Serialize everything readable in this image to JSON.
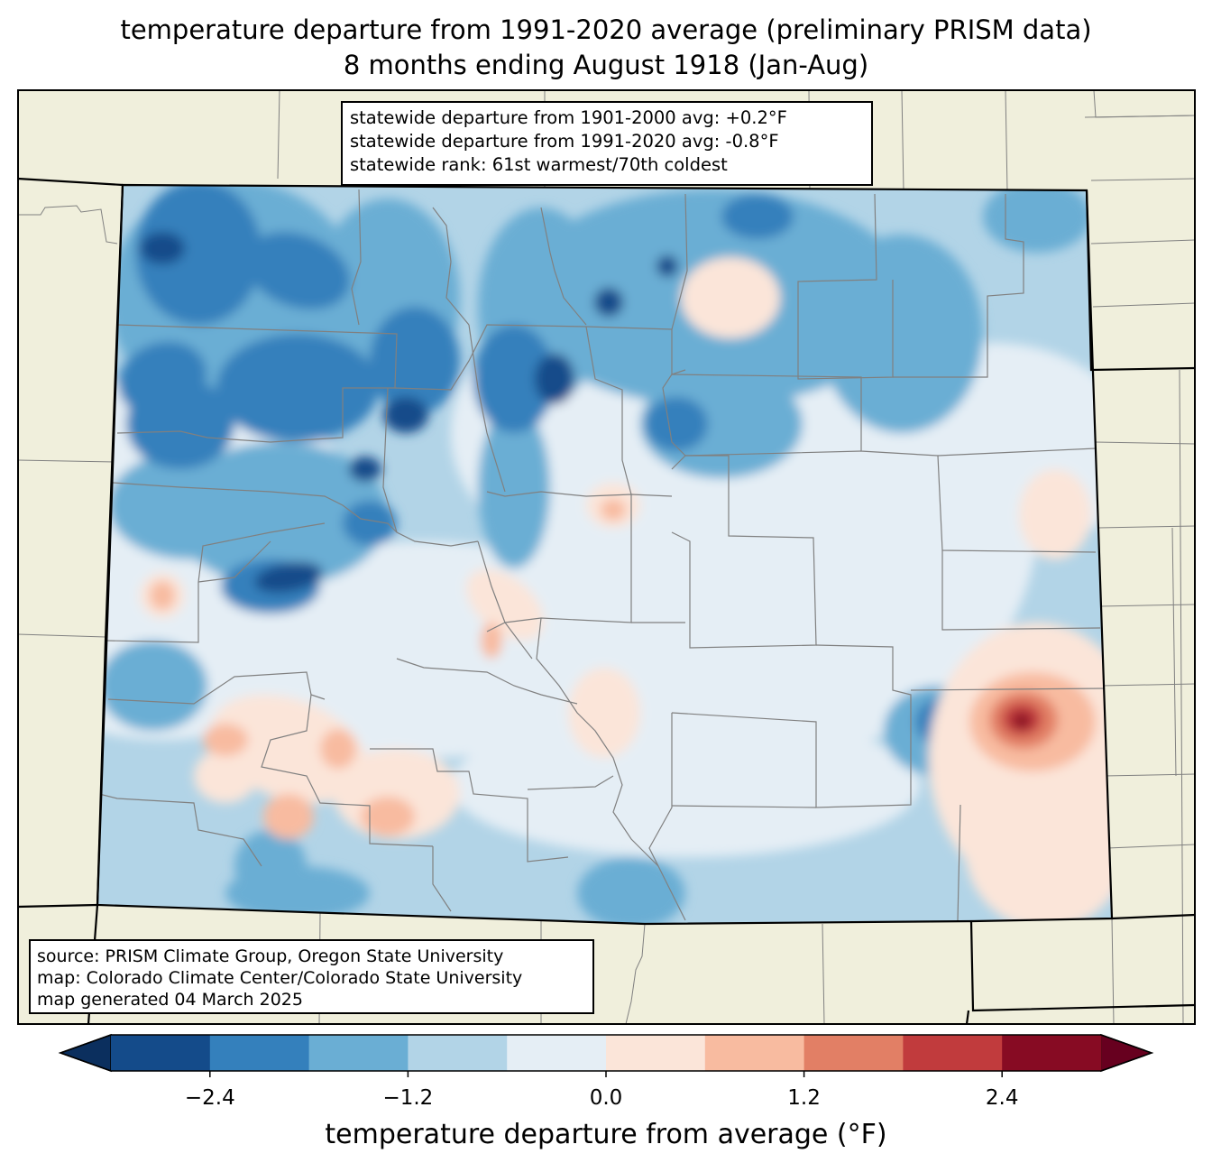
{
  "title": {
    "line1": "temperature departure from 1991-2020 average (preliminary PRISM data)",
    "line2": "8 months ending August 1918 (Jan-Aug)"
  },
  "stats": {
    "line1": "statewide departure from 1901-2000 avg: +0.2°F",
    "line2": "statewide departure from 1991-2020 avg: -0.8°F",
    "line3": "statewide rank: 61st warmest/70th coldest"
  },
  "source": {
    "line1": "source: PRISM Climate Group, Oregon State University",
    "line2": "map: Colorado Climate Center/Colorado State University",
    "line3": "map generated 04 March 2025"
  },
  "colorbar": {
    "label": "temperature departure from average (°F)",
    "bounds": [
      -3.0,
      -2.4,
      -1.8,
      -1.2,
      -0.6,
      0.0,
      0.6,
      1.2,
      1.8,
      2.4,
      3.0
    ],
    "colors": [
      "#144b8a",
      "#3480bc",
      "#6aaed4",
      "#b2d4e7",
      "#e5eef5",
      "#fbe5d9",
      "#f8bba0",
      "#e27f65",
      "#c13b3d",
      "#870b23"
    ],
    "under_color": "#0b2f5e",
    "over_color": "#67001f",
    "ticks": [
      {
        "value": -2.4,
        "label": "−2.4"
      },
      {
        "value": -1.2,
        "label": "−1.2"
      },
      {
        "value": 0.0,
        "label": "0.0"
      },
      {
        "value": 1.2,
        "label": "1.2"
      },
      {
        "value": 2.4,
        "label": "2.4"
      }
    ]
  },
  "map_colors": {
    "land": "#f0efdc",
    "background_field": "#b2d4e7",
    "county_lines": "#808080",
    "state_lines": "#000000"
  }
}
